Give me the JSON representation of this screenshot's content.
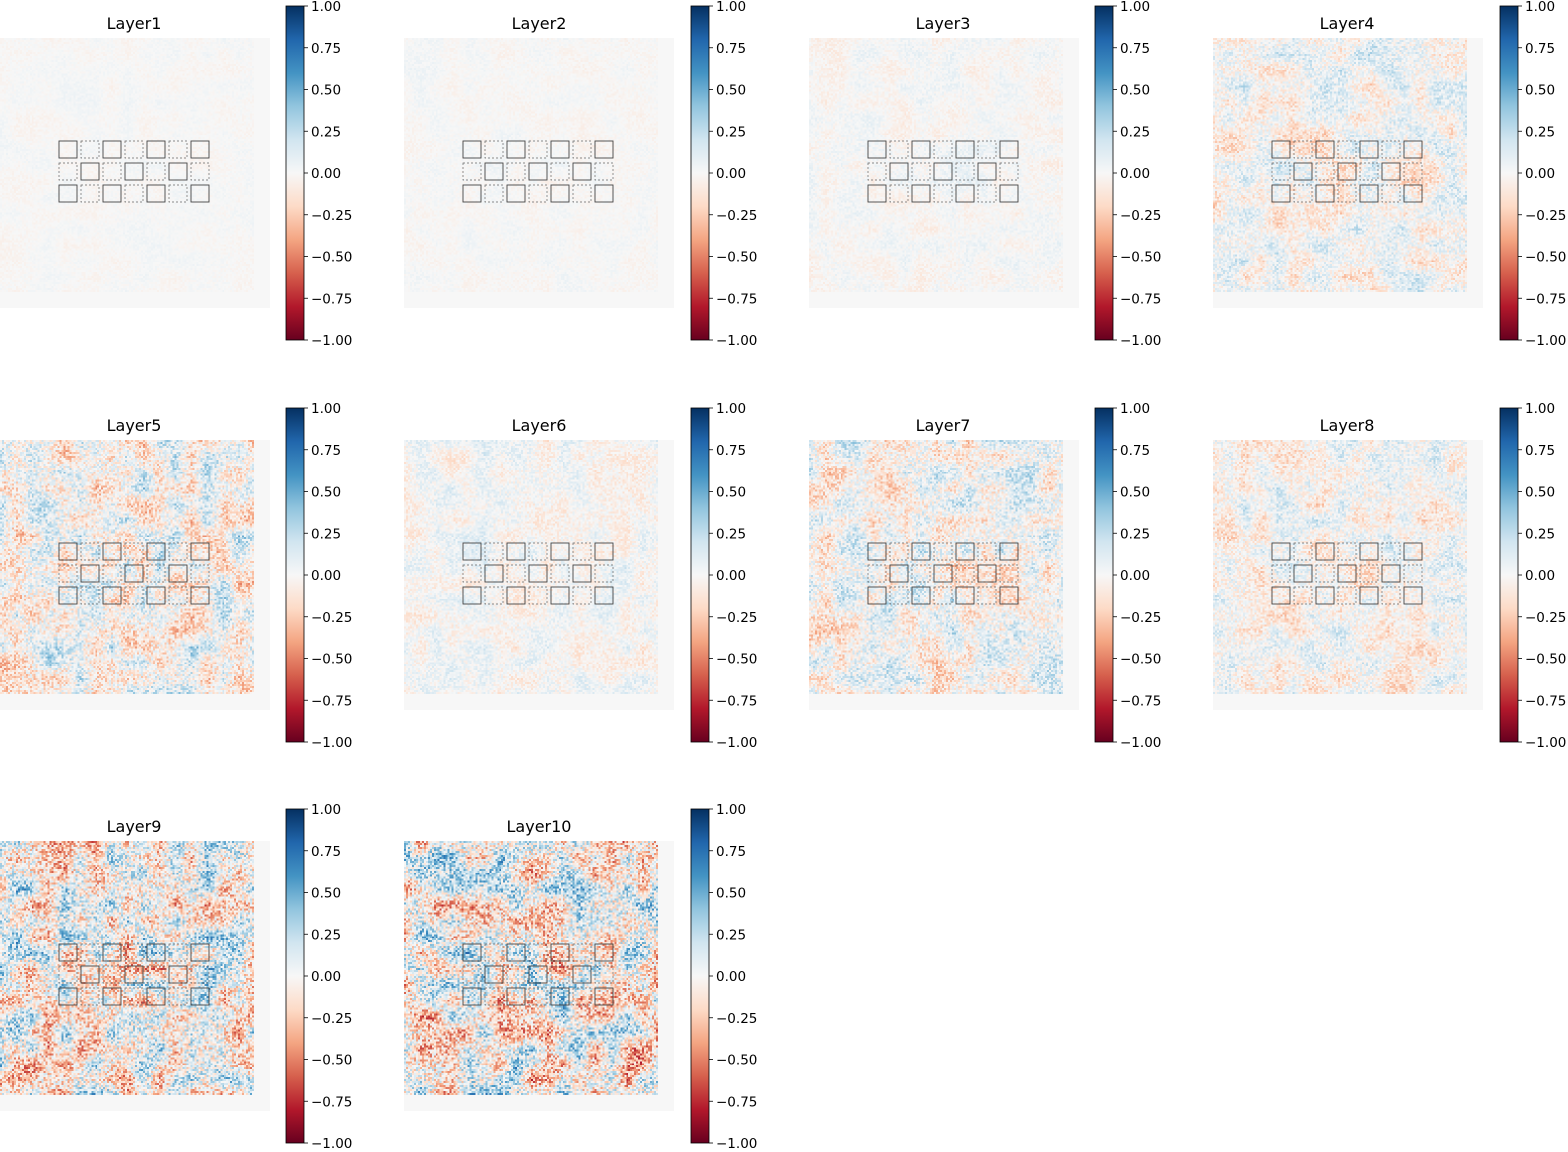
{
  "chart_data": {
    "type": "heatmap",
    "colormap": "RdBu",
    "colorbar": {
      "range": [
        -1.0,
        1.0
      ],
      "ticks": [
        1.0,
        0.75,
        0.5,
        0.25,
        0.0,
        -0.25,
        -0.5,
        -0.75,
        -1.0
      ],
      "tick_labels": [
        "1.00",
        "0.75",
        "0.50",
        "0.25",
        "0.00",
        "−0.25",
        "−0.50",
        "−0.75",
        "−1.00"
      ]
    },
    "grid": "off",
    "panels": [
      {
        "title": "Layer1",
        "vlim": [
          -1.0,
          1.0
        ],
        "noise_level": 0.05
      },
      {
        "title": "Layer2",
        "vlim": [
          -1.0,
          1.0
        ],
        "noise_level": 0.06
      },
      {
        "title": "Layer3",
        "vlim": [
          -1.0,
          1.0
        ],
        "noise_level": 0.1
      },
      {
        "title": "Layer4",
        "vlim": [
          -1.0,
          1.0
        ],
        "noise_level": 0.28
      },
      {
        "title": "Layer5",
        "vlim": [
          -1.0,
          1.0
        ],
        "noise_level": 0.4
      },
      {
        "title": "Layer6",
        "vlim": [
          -1.0,
          1.0
        ],
        "noise_level": 0.18
      },
      {
        "title": "Layer7",
        "vlim": [
          -1.0,
          1.0
        ],
        "noise_level": 0.35
      },
      {
        "title": "Layer8",
        "vlim": [
          -1.0,
          1.0
        ],
        "noise_level": 0.28
      },
      {
        "title": "Layer9",
        "vlim": [
          -1.0,
          1.0
        ],
        "noise_level": 0.6
      },
      {
        "title": "Layer10",
        "vlim": [
          -1.0,
          1.0
        ],
        "noise_level": 0.62
      }
    ]
  }
}
